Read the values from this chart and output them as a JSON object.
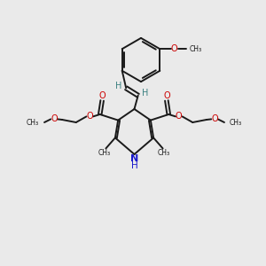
{
  "background_color": "#eaeaea",
  "bond_color": "#1a1a1a",
  "red_color": "#cc0000",
  "blue_color": "#1a1acc",
  "teal_color": "#3a8080",
  "figsize": [
    3.0,
    3.0
  ],
  "dpi": 100,
  "xlim": [
    0,
    10
  ],
  "ylim": [
    0,
    10
  ]
}
